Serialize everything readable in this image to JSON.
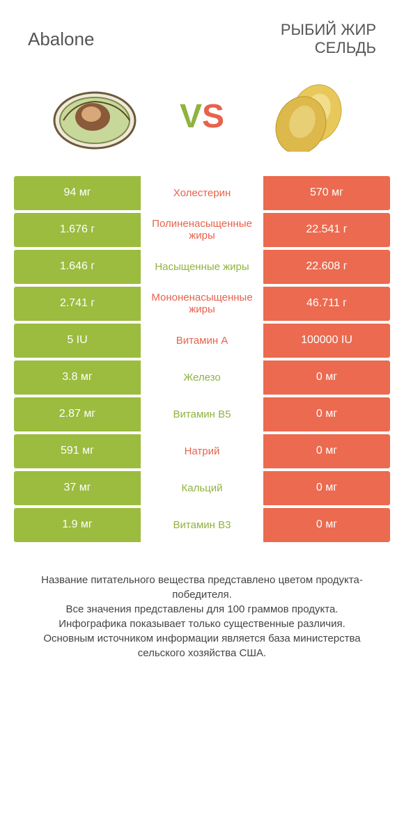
{
  "header": {
    "left": "Abalone",
    "right": "РЫБИЙ ЖИР\nСЕЛЬДЬ"
  },
  "vs": {
    "v": "V",
    "s": "S"
  },
  "colors": {
    "green": "#9bbc3f",
    "orange": "#ec6a4f",
    "green_text": "#8fb33f",
    "orange_text": "#e8624c"
  },
  "rows": [
    {
      "left": "94 мг",
      "mid": "Холестерин",
      "right": "570 мг",
      "winner": "right"
    },
    {
      "left": "1.676 г",
      "mid": "Полиненасыщенные жиры",
      "right": "22.541 г",
      "winner": "right"
    },
    {
      "left": "1.646 г",
      "mid": "Насыщенные жиры",
      "right": "22.608 г",
      "winner": "left"
    },
    {
      "left": "2.741 г",
      "mid": "Мононенасыщенные жиры",
      "right": "46.711 г",
      "winner": "right"
    },
    {
      "left": "5 IU",
      "mid": "Витамин A",
      "right": "100000 IU",
      "winner": "right"
    },
    {
      "left": "3.8 мг",
      "mid": "Железо",
      "right": "0 мг",
      "winner": "left"
    },
    {
      "left": "2.87 мг",
      "mid": "Витамин B5",
      "right": "0 мг",
      "winner": "left"
    },
    {
      "left": "591 мг",
      "mid": "Натрий",
      "right": "0 мг",
      "winner": "right"
    },
    {
      "left": "37 мг",
      "mid": "Кальций",
      "right": "0 мг",
      "winner": "left"
    },
    {
      "left": "1.9 мг",
      "mid": "Витамин B3",
      "right": "0 мг",
      "winner": "left"
    }
  ],
  "footer": {
    "l1": "Название питательного вещества представлено цветом продукта-победителя.",
    "l2": "Все значения представлены для 100 граммов продукта.",
    "l3": "Инфографика показывает только существенные различия.",
    "l4": "Основным источником информации является база министерства сельского хозяйства США."
  }
}
